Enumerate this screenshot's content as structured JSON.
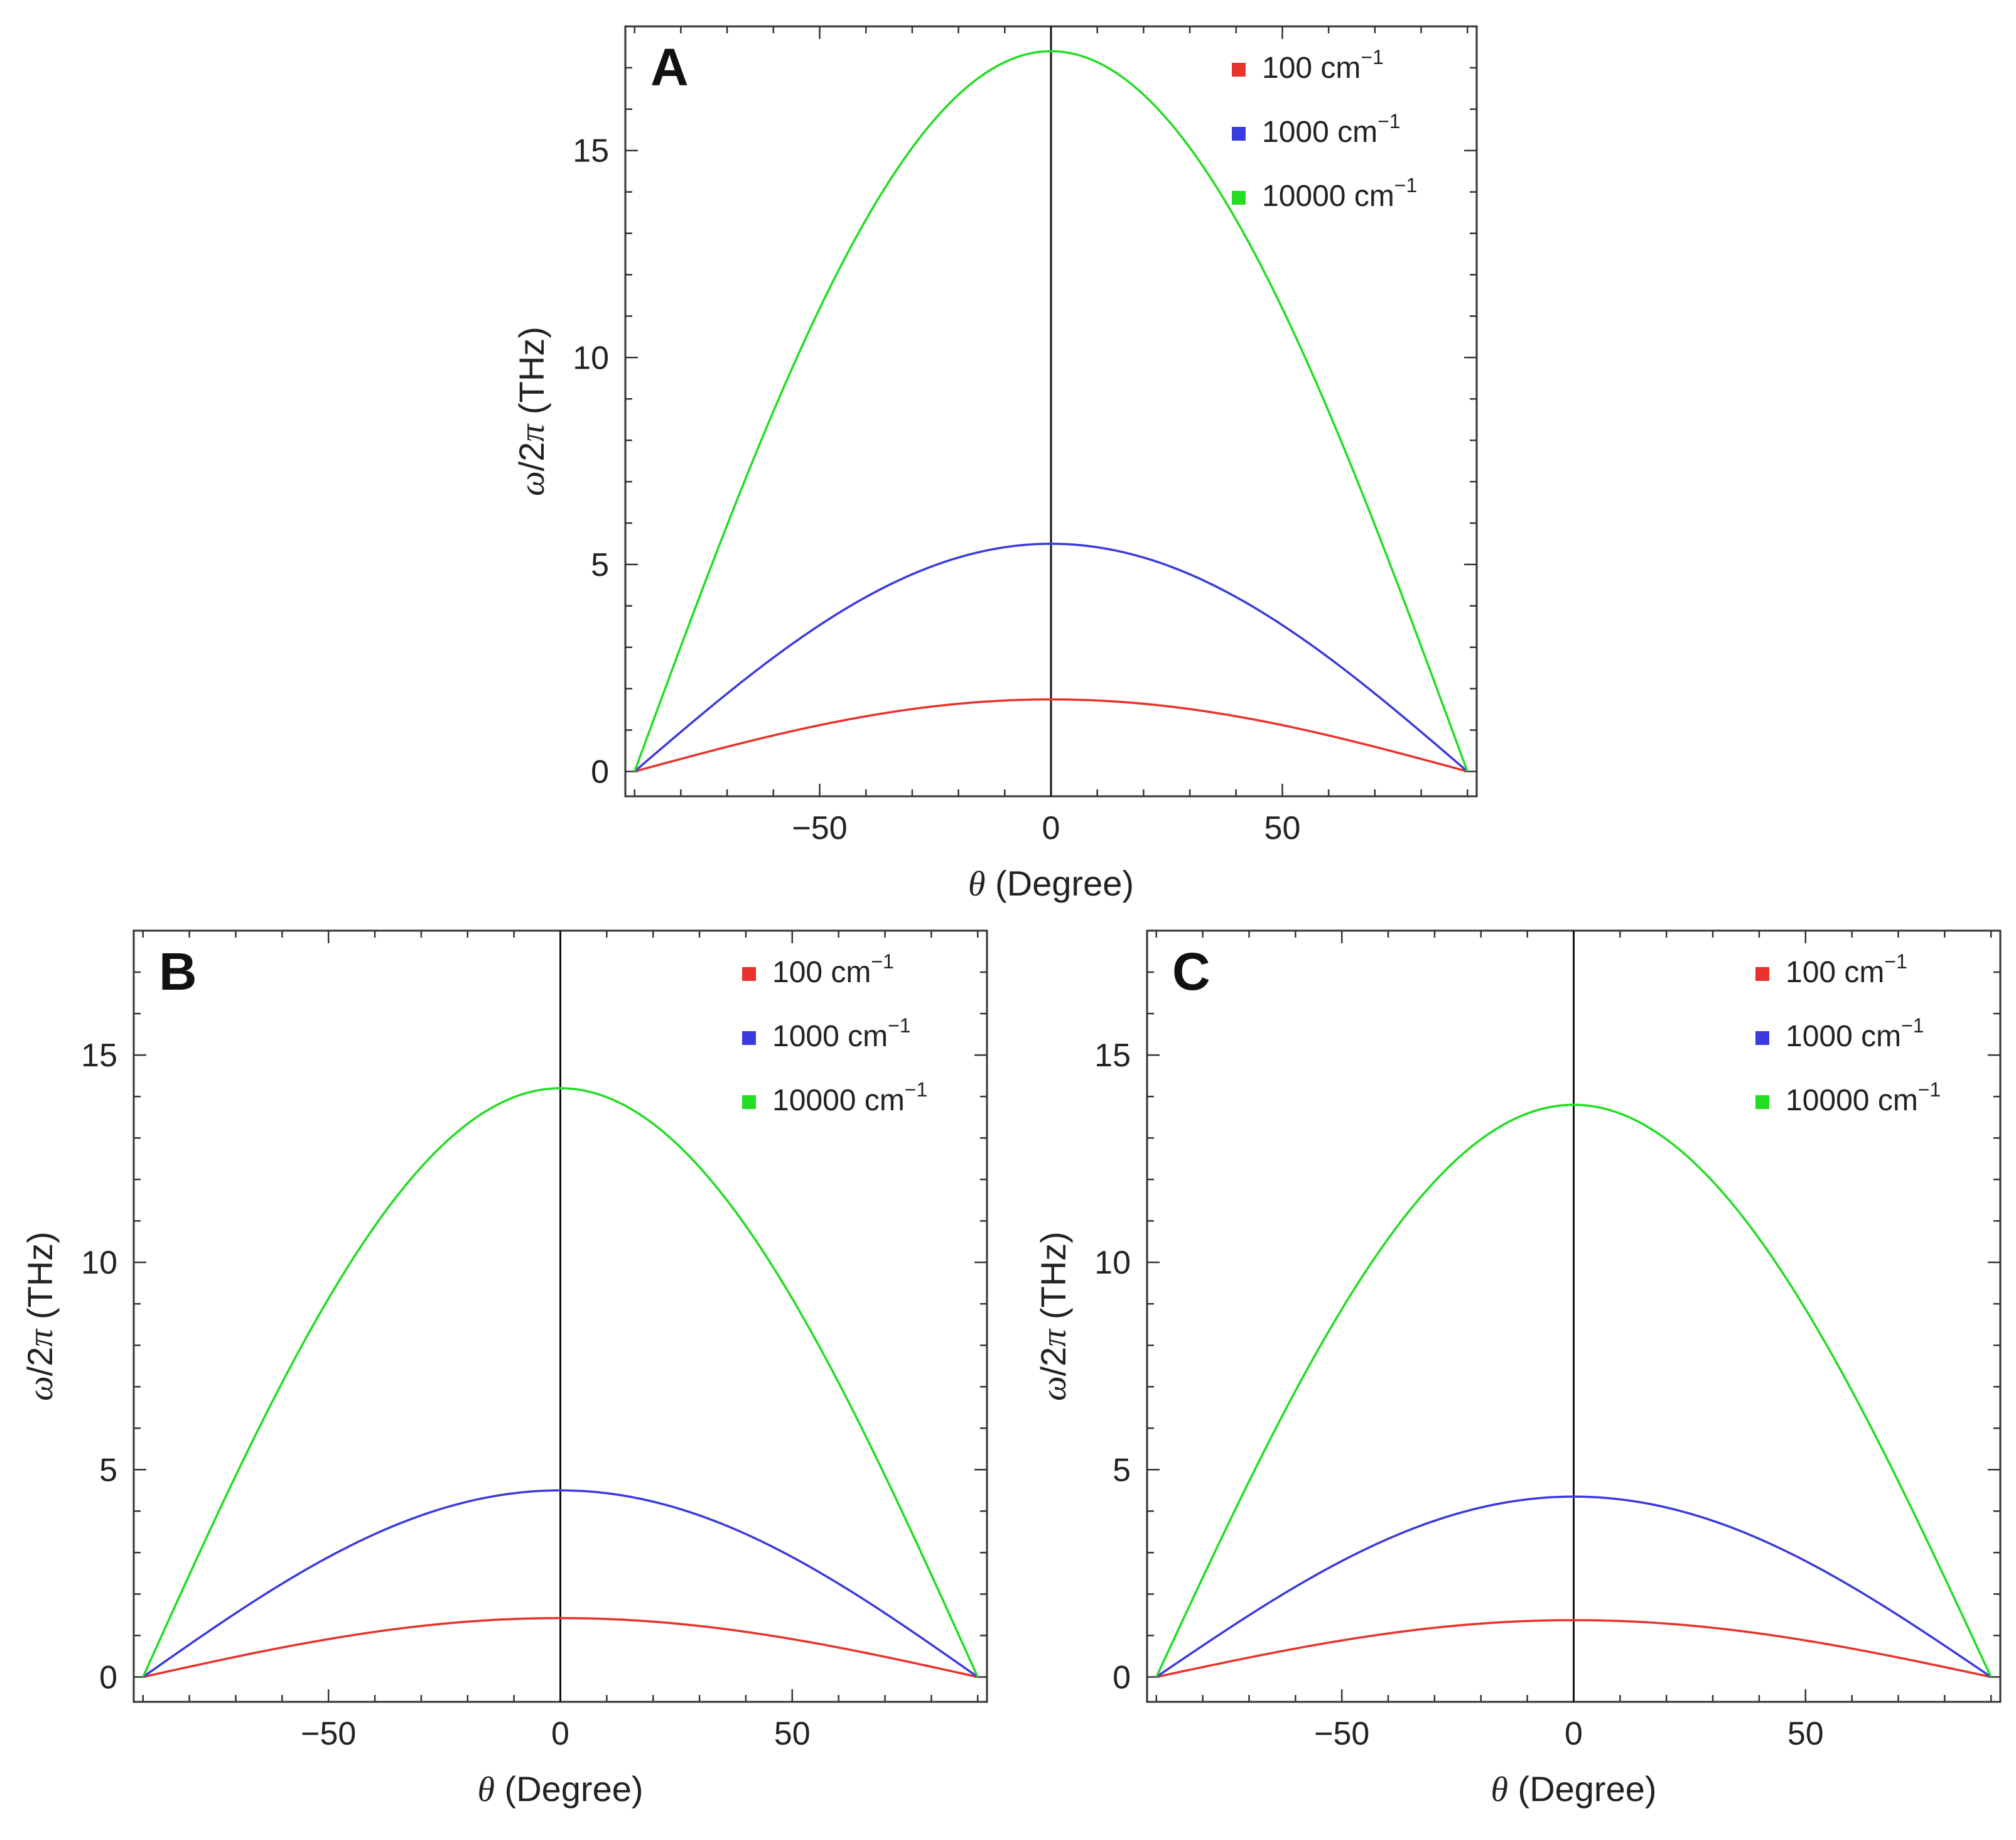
{
  "chart_data": [
    {
      "panel": "A",
      "type": "line",
      "xlabel_symbol": "θ",
      "xlabel_rest": " (Degree)",
      "ylabel_symbol": "ω",
      "ylabel_mid": "/2",
      "ylabel_pi": "π",
      "ylabel_rest": " (THz)",
      "xlim": [
        -92,
        92
      ],
      "ylim": [
        -0.6,
        18
      ],
      "xticks": [
        -50,
        0,
        50
      ],
      "yticks": [
        0,
        5,
        10,
        15
      ],
      "xtick_labels": [
        "−50",
        "0",
        "50"
      ],
      "ytick_labels": [
        "0",
        "5",
        "10",
        "15"
      ],
      "x_domain": [
        -90,
        90
      ],
      "series": [
        {
          "name": "100 cm",
          "sup": "−1",
          "color": "#e8322b",
          "peak": 1.74
        },
        {
          "name": "1000 cm",
          "sup": "−1",
          "color": "#3a3adf",
          "peak": 5.5
        },
        {
          "name": "10000 cm",
          "sup": "−1",
          "color": "#22dd22",
          "peak": 17.4
        }
      ]
    },
    {
      "panel": "B",
      "type": "line",
      "xlabel_symbol": "θ",
      "xlabel_rest": " (Degree)",
      "ylabel_symbol": "ω",
      "ylabel_mid": "/2",
      "ylabel_pi": "π",
      "ylabel_rest": " (THz)",
      "xlim": [
        -92,
        92
      ],
      "ylim": [
        -0.6,
        18
      ],
      "xticks": [
        -50,
        0,
        50
      ],
      "yticks": [
        0,
        5,
        10,
        15
      ],
      "xtick_labels": [
        "−50",
        "0",
        "50"
      ],
      "ytick_labels": [
        "0",
        "5",
        "10",
        "15"
      ],
      "x_domain": [
        -90,
        90
      ],
      "series": [
        {
          "name": "100 cm",
          "sup": "−1",
          "color": "#e8322b",
          "peak": 1.42
        },
        {
          "name": "1000 cm",
          "sup": "−1",
          "color": "#3a3adf",
          "peak": 4.5
        },
        {
          "name": "10000 cm",
          "sup": "−1",
          "color": "#22dd22",
          "peak": 14.2
        }
      ]
    },
    {
      "panel": "C",
      "type": "line",
      "xlabel_symbol": "θ",
      "xlabel_rest": " (Degree)",
      "ylabel_symbol": "ω",
      "ylabel_mid": "/2",
      "ylabel_pi": "π",
      "ylabel_rest": " (THz)",
      "xlim": [
        -92,
        92
      ],
      "ylim": [
        -0.6,
        18
      ],
      "xticks": [
        -50,
        0,
        50
      ],
      "yticks": [
        0,
        5,
        10,
        15
      ],
      "xtick_labels": [
        "−50",
        "0",
        "50"
      ],
      "ytick_labels": [
        "0",
        "5",
        "10",
        "15"
      ],
      "x_domain": [
        -90,
        90
      ],
      "series": [
        {
          "name": "100 cm",
          "sup": "−1",
          "color": "#e8322b",
          "peak": 1.37
        },
        {
          "name": "1000 cm",
          "sup": "−1",
          "color": "#3a3adf",
          "peak": 4.35
        },
        {
          "name": "10000 cm",
          "sup": "−1",
          "color": "#22dd22",
          "peak": 13.8
        }
      ]
    }
  ]
}
